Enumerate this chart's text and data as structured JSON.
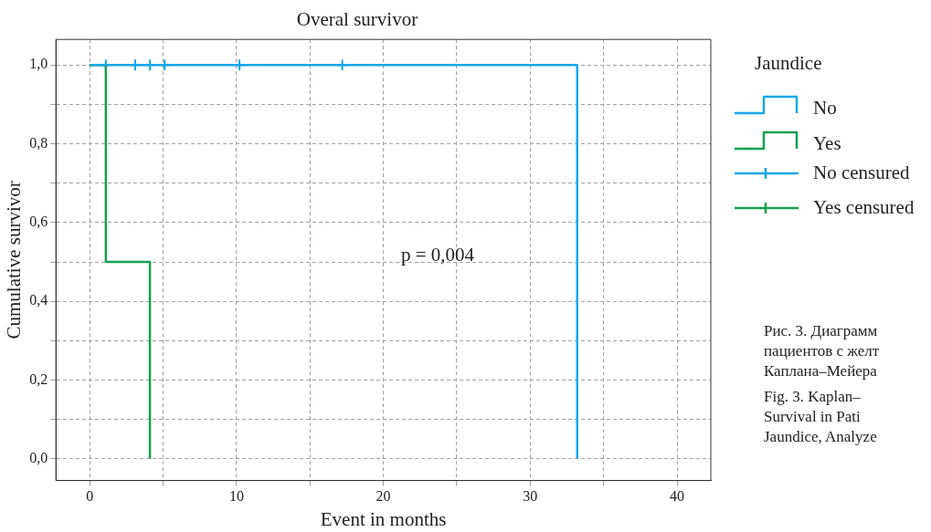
{
  "chart_data": {
    "type": "step",
    "title": "Overal survivor",
    "xlabel": "Event in months",
    "ylabel": "Cumulative survivor",
    "legend_title": "Jaundice",
    "xlim": [
      -2.3,
      42.3
    ],
    "ylim": [
      -0.055,
      1.065
    ],
    "xticks": [
      0,
      {
        "value": 5,
        "label": null
      },
      10,
      {
        "value": 15,
        "label": null
      },
      20,
      {
        "value": 25,
        "label": null
      },
      30,
      {
        "value": 35,
        "label": null
      },
      40
    ],
    "yticks": [
      {
        "value": 0,
        "label": "0,0"
      },
      {
        "value": 0.1,
        "label": null
      },
      {
        "value": 0.2,
        "label": "0,2"
      },
      {
        "value": 0.3,
        "label": null
      },
      {
        "value": 0.4,
        "label": "0,4"
      },
      {
        "value": 0.5,
        "label": null
      },
      {
        "value": 0.6,
        "label": "0,6"
      },
      {
        "value": 0.7,
        "label": null
      },
      {
        "value": 0.8,
        "label": "0,8"
      },
      {
        "value": 0.9,
        "label": null
      },
      {
        "value": 1,
        "label": "1,0"
      }
    ],
    "grid": true,
    "legend": "right",
    "line_style": "solid",
    "series": [
      {
        "name": "No",
        "color": "#14a8e6",
        "x": [
          0,
          33.2
        ],
        "values": [
          1,
          0
        ]
      },
      {
        "name": "Yes",
        "color": "#16a050",
        "x": [
          0,
          1.1,
          4.1
        ],
        "values": [
          1,
          0.5,
          0
        ]
      },
      {
        "name": "No censured",
        "type": "scatter",
        "marker": "cross",
        "color": "#14a8e6",
        "x": [
          1.1,
          3.1,
          4.1,
          5.1,
          10.2,
          17.2
        ],
        "values": [
          1,
          1,
          1,
          1,
          1,
          1
        ]
      },
      {
        "name": "Yes censured",
        "type": "scatter",
        "marker": "cross",
        "color": "#16a050"
      }
    ],
    "annotations": [
      "p = 0,004",
      "Рис. 3. Диаграмм",
      "пациентов с желт",
      "Каплана–Мейера",
      "Fig. 3. Kaplan–",
      "Survival in Pati",
      "Jaundice, Analyze"
    ]
  }
}
